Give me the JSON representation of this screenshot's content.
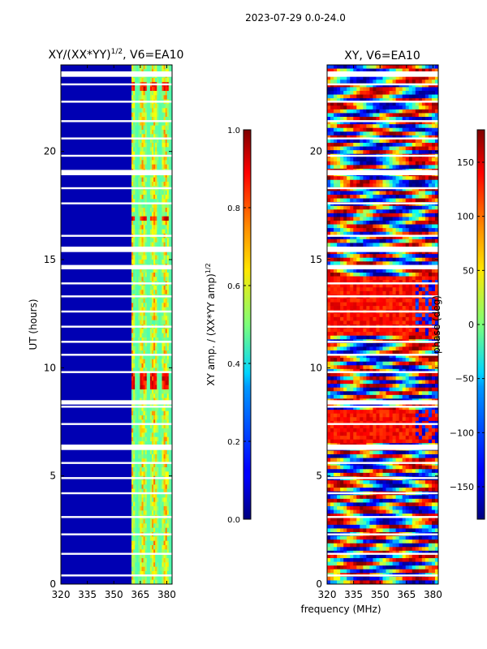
{
  "figure": {
    "suptitle": "2023-07-29 0.0-24.0",
    "shared_xlabel": "frequency (MHz)"
  },
  "chart_data": [
    {
      "type": "heatmap",
      "title_main": "XY/(XX*YY)",
      "title_sup": "1/2",
      "title_tail": ", V6=EA10",
      "xlabel": "",
      "ylabel": "UT (hours)",
      "xlim": [
        320,
        383
      ],
      "ylim": [
        0,
        24
      ],
      "xticks": [
        320,
        335,
        350,
        365,
        380
      ],
      "yticks": [
        0,
        5,
        10,
        15,
        20
      ],
      "colormap": "jet",
      "colorbar": {
        "label_main": "XY amp. / (XX*YY amp)",
        "label_sup": "1/2",
        "range": [
          0.0,
          1.0
        ],
        "ticks": [
          "0.0",
          "0.2",
          "0.4",
          "0.6",
          "0.8",
          "1.0"
        ],
        "tick_values": [
          0.0,
          0.2,
          0.4,
          0.6,
          0.8,
          1.0
        ]
      },
      "description_values": {
        "background_value": 0.05,
        "signal_band_mhz": [
          360,
          383
        ],
        "signal_value_range": [
          0.3,
          0.9
        ],
        "flagged_rows_ut": [
          0.4,
          1.4,
          2.3,
          3.1,
          4.2,
          4.9,
          5.6,
          6.3,
          7.4,
          8.2,
          8.45,
          9.8,
          10.6,
          11.2,
          11.9,
          12.6,
          13.3,
          13.9,
          14.7,
          15.5,
          16.1,
          17.6,
          18.3,
          19.1,
          19.8,
          20.6,
          21.4,
          22.3,
          23.1,
          23.6
        ],
        "wide_flag_rows_ut": [
          [
            6.2,
            6.45
          ],
          [
            8.3,
            8.5
          ],
          [
            14.55,
            14.75
          ],
          [
            15.35,
            15.6
          ],
          [
            18.9,
            19.1
          ],
          [
            23.45,
            23.7
          ]
        ]
      }
    },
    {
      "type": "heatmap",
      "title_main": "XY, V6=EA10",
      "xlabel": "frequency (MHz)",
      "ylabel": "",
      "xlim": [
        320,
        383
      ],
      "ylim": [
        0,
        24
      ],
      "xticks": [
        320,
        335,
        350,
        365,
        380
      ],
      "yticks": [
        0,
        5,
        10,
        15,
        20
      ],
      "colormap": "jet",
      "colorbar": {
        "label_main": "phase (deg)",
        "range": [
          -180,
          180
        ],
        "ticks": [
          "−150",
          "−100",
          "−50",
          "0",
          "50",
          "100",
          "150"
        ],
        "tick_values": [
          -150,
          -100,
          -50,
          0,
          50,
          100,
          150
        ]
      },
      "description_values": {
        "high_phase_bands_ut": [
          [
            6.5,
            8.0
          ],
          [
            11.5,
            14.3
          ]
        ],
        "high_phase_value": 150,
        "mixed_phase_range": [
          -180,
          180
        ]
      }
    }
  ]
}
